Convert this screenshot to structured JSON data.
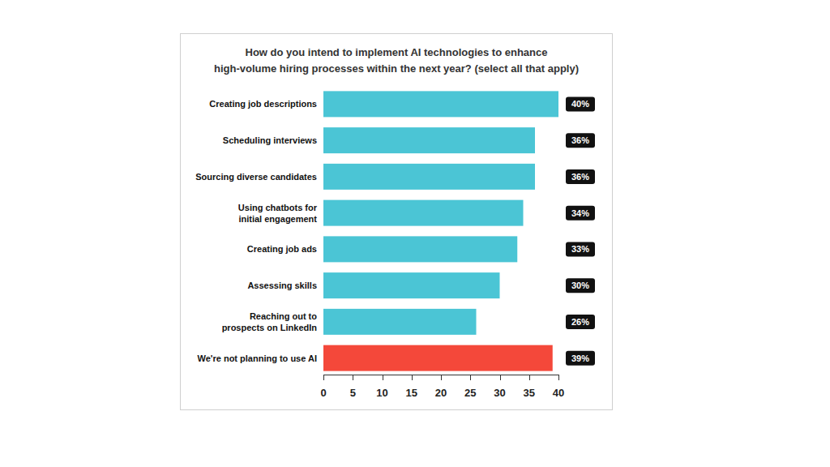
{
  "chart_data": {
    "type": "bar",
    "title": "How do you intend to implement AI technologies to enhance high-volume hiring processes within the next year? (select all that apply)",
    "orientation": "horizontal",
    "categories": [
      "Creating job descriptions",
      "Scheduling interviews",
      "Sourcing diverse candidates",
      "Using chatbots for initial engagement",
      "Creating job ads",
      "Assessing skills",
      "Reaching out to prospects on LinkedIn",
      "We're not planning to use AI"
    ],
    "values": [
      40,
      36,
      36,
      34,
      33,
      30,
      26,
      39
    ],
    "value_labels": [
      "40%",
      "36%",
      "36%",
      "34%",
      "33%",
      "30%",
      "26%",
      "39%"
    ],
    "colors": [
      "#4bc5d5",
      "#4bc5d5",
      "#4bc5d5",
      "#4bc5d5",
      "#4bc5d5",
      "#4bc5d5",
      "#4bc5d5",
      "#f4483a"
    ],
    "xlim": [
      0,
      40
    ],
    "xticks": [
      0,
      5,
      10,
      15,
      20,
      25,
      30,
      35,
      40
    ],
    "data_labels": true,
    "grid": false
  }
}
